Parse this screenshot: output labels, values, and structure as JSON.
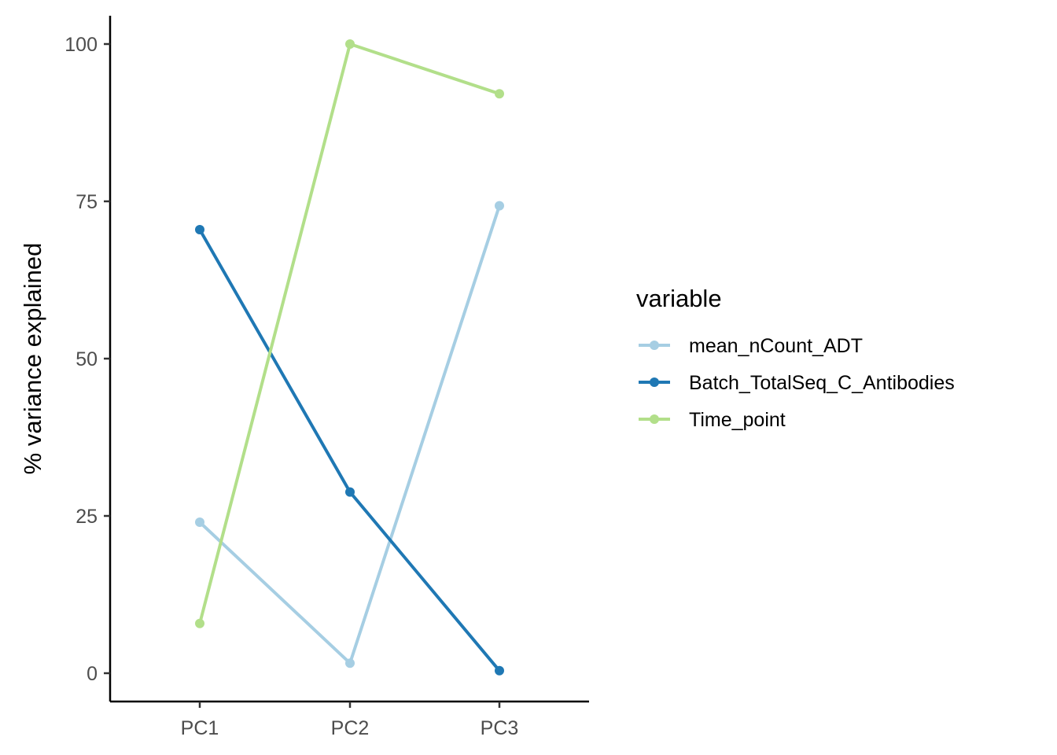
{
  "chart_data": {
    "type": "line",
    "categories": [
      "PC1",
      "PC2",
      "PC3"
    ],
    "ylabel": "% variance explained",
    "ylim": [
      -4.5,
      104.5
    ],
    "yticks": [
      0,
      25,
      50,
      75,
      100
    ],
    "yticks_labels": [
      "0",
      "25",
      "50",
      "75",
      "100"
    ],
    "grid": false,
    "legend_title": "variable",
    "legend_position": "right",
    "series": [
      {
        "name": "mean_nCount_ADT",
        "color": "#a6cee3",
        "values": [
          24,
          1.6,
          74.3
        ]
      },
      {
        "name": "Batch_TotalSeq_C_Antibodies",
        "color": "#1f78b4",
        "values": [
          70.5,
          28.8,
          0.4
        ]
      },
      {
        "name": "Time_point",
        "color": "#b2df8a",
        "values": [
          7.9,
          100,
          92.1
        ]
      }
    ]
  }
}
